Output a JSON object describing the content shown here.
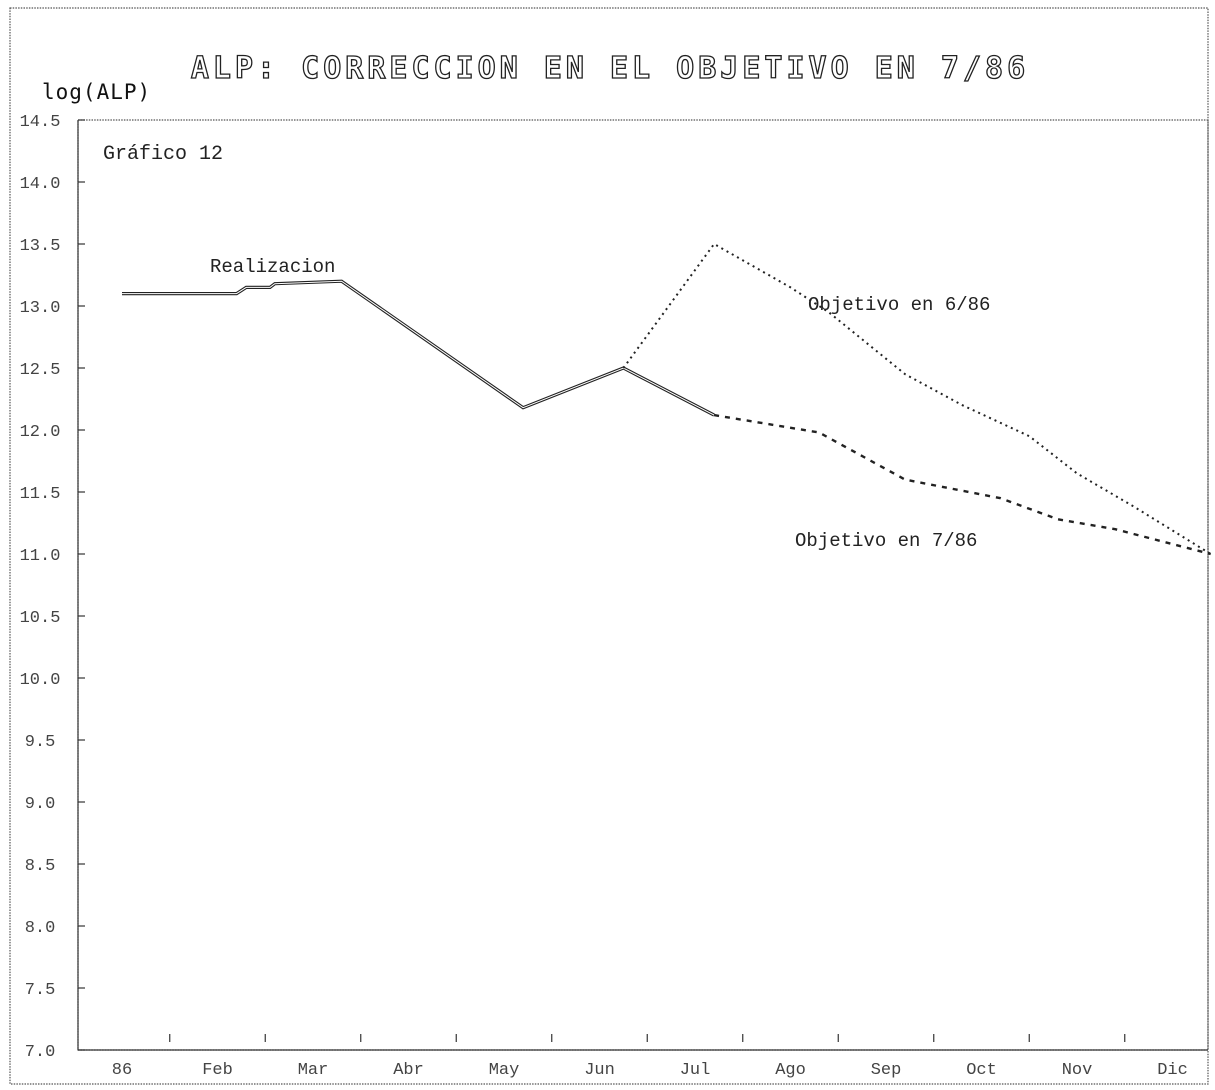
{
  "chart_data": {
    "type": "line",
    "title": "ALP: CORRECCION EN EL OBJETIVO EN 7/86",
    "ylabel": "log(ALP)",
    "panel_label": "Gráfico 12",
    "categories": [
      "86",
      "Feb",
      "Mar",
      "Abr",
      "May",
      "Jun",
      "Jul",
      "Ago",
      "Sep",
      "Oct",
      "Nov",
      "Dic"
    ],
    "yticks": [
      "14.5",
      "14.0",
      "13.5",
      "13.0",
      "12.5",
      "12.0",
      "11.5",
      "11.0",
      "10.5",
      "10.0",
      "9.5",
      "9.0",
      "8.5",
      "8.0",
      "7.5",
      "7.0"
    ],
    "ylim": [
      7.0,
      14.5
    ],
    "grid": false,
    "series": [
      {
        "name": "Realizacion",
        "style": "solid",
        "points": [
          [
            0.0,
            13.1
          ],
          [
            1.2,
            13.1
          ],
          [
            1.3,
            13.15
          ],
          [
            1.55,
            13.15
          ],
          [
            1.6,
            13.18
          ],
          [
            2.3,
            13.2
          ],
          [
            4.2,
            12.18
          ],
          [
            5.25,
            12.5
          ],
          [
            6.2,
            12.12
          ]
        ]
      },
      {
        "name": "Objetivo en 6/86",
        "style": "dotted",
        "points": [
          [
            5.25,
            12.5
          ],
          [
            6.2,
            13.5
          ],
          [
            7.0,
            13.15
          ],
          [
            7.4,
            12.95
          ],
          [
            8.2,
            12.45
          ],
          [
            8.8,
            12.2
          ],
          [
            9.5,
            11.95
          ],
          [
            10.0,
            11.65
          ],
          [
            10.6,
            11.38
          ],
          [
            11.4,
            11.0
          ]
        ]
      },
      {
        "name": "Objetivo en 7/86",
        "style": "dashed",
        "points": [
          [
            6.2,
            12.12
          ],
          [
            7.3,
            11.98
          ],
          [
            8.2,
            11.6
          ],
          [
            9.2,
            11.45
          ],
          [
            9.8,
            11.28
          ],
          [
            10.4,
            11.2
          ],
          [
            11.0,
            11.08
          ],
          [
            11.4,
            11.0
          ]
        ]
      }
    ]
  }
}
